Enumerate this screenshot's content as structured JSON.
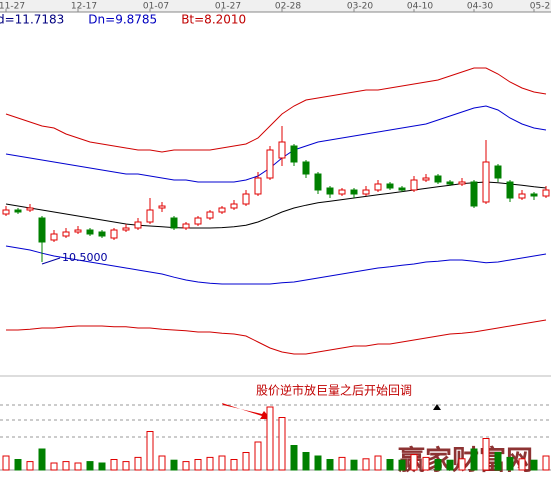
{
  "chart_data": {
    "type": "candlestick",
    "header_labels": [
      {
        "text": "d=11.7183",
        "color": "#000080"
      },
      {
        "text": "Dn=9.8785",
        "color": "#0000c0"
      },
      {
        "text": "Bt=8.2010",
        "color": "#c00000"
      }
    ],
    "categories": [
      "11-27",
      null,
      null,
      null,
      null,
      null,
      "12-17",
      null,
      null,
      null,
      null,
      null,
      "01-07",
      null,
      null,
      null,
      null,
      null,
      "01-27",
      null,
      null,
      null,
      null,
      "02-28",
      null,
      null,
      null,
      null,
      null,
      "03-20",
      null,
      null,
      null,
      null,
      "04-10",
      null,
      null,
      null,
      null,
      "04-30",
      null,
      null,
      null,
      null,
      "05-2",
      null
    ],
    "open": [
      11.7,
      11.8,
      11.8,
      11.6,
      11.05,
      11.15,
      11.25,
      11.3,
      11.25,
      11.1,
      11.3,
      11.35,
      11.5,
      11.85,
      11.6,
      11.35,
      11.45,
      11.6,
      11.75,
      11.85,
      11.95,
      12.2,
      12.6,
      13.1,
      13.4,
      13.0,
      12.7,
      12.35,
      12.2,
      12.3,
      12.2,
      12.3,
      12.45,
      12.35,
      12.3,
      12.55,
      12.65,
      12.5,
      12.45,
      12.5,
      12.0,
      12.9,
      12.5,
      12.1,
      12.2,
      12.15
    ],
    "high": [
      11.9,
      11.85,
      11.95,
      11.65,
      11.3,
      11.35,
      11.4,
      11.35,
      11.3,
      11.35,
      11.45,
      11.6,
      12.1,
      12.0,
      11.65,
      11.5,
      11.65,
      11.8,
      11.9,
      12.05,
      12.3,
      12.75,
      13.4,
      13.9,
      13.45,
      13.05,
      12.75,
      12.4,
      12.35,
      12.35,
      12.4,
      12.55,
      12.5,
      12.4,
      12.65,
      12.7,
      12.7,
      12.55,
      12.6,
      12.55,
      13.55,
      12.95,
      12.55,
      12.3,
      12.25,
      12.4
    ],
    "low": [
      11.65,
      11.7,
      11.75,
      10.5,
      11.0,
      11.1,
      11.2,
      11.15,
      11.1,
      11.05,
      11.25,
      11.3,
      11.45,
      11.75,
      11.3,
      11.3,
      11.4,
      11.55,
      11.7,
      11.8,
      11.9,
      12.15,
      12.55,
      12.9,
      12.9,
      12.6,
      12.2,
      12.1,
      12.15,
      12.1,
      12.15,
      12.25,
      12.3,
      12.25,
      12.25,
      12.5,
      12.45,
      12.4,
      12.4,
      11.85,
      11.95,
      12.5,
      12.0,
      12.05,
      12.05,
      12.1
    ],
    "close": [
      11.8,
      11.75,
      11.85,
      11.0,
      11.2,
      11.25,
      11.3,
      11.2,
      11.15,
      11.3,
      11.35,
      11.5,
      11.8,
      11.9,
      11.35,
      11.45,
      11.6,
      11.75,
      11.85,
      11.95,
      12.2,
      12.6,
      13.3,
      13.5,
      13.0,
      12.7,
      12.3,
      12.2,
      12.3,
      12.2,
      12.3,
      12.45,
      12.35,
      12.3,
      12.55,
      12.6,
      12.5,
      12.45,
      12.5,
      11.9,
      13.0,
      12.6,
      12.1,
      12.2,
      12.15,
      12.3
    ],
    "up_color": "#e00000",
    "down_color": "#008000",
    "ylim": [
      7.8,
      17.05
    ],
    "series": [
      {
        "color": "#d00000",
        "values": [
          14.2,
          14.1,
          14.0,
          13.9,
          13.85,
          13.7,
          13.6,
          13.5,
          13.45,
          13.4,
          13.35,
          13.3,
          13.3,
          13.25,
          13.3,
          13.3,
          13.3,
          13.3,
          13.35,
          13.4,
          13.45,
          13.6,
          13.9,
          14.2,
          14.4,
          14.55,
          14.6,
          14.65,
          14.7,
          14.75,
          14.8,
          14.8,
          14.85,
          14.9,
          14.95,
          15.0,
          15.05,
          15.15,
          15.25,
          15.35,
          15.35,
          15.2,
          15.0,
          14.85,
          14.75,
          14.7
        ]
      },
      {
        "color": "#0000d0",
        "values": [
          13.2,
          13.15,
          13.1,
          13.05,
          13.0,
          12.95,
          12.9,
          12.85,
          12.8,
          12.75,
          12.7,
          12.7,
          12.65,
          12.6,
          12.55,
          12.55,
          12.5,
          12.5,
          12.5,
          12.5,
          12.55,
          12.65,
          12.85,
          13.1,
          13.3,
          13.4,
          13.5,
          13.55,
          13.6,
          13.65,
          13.7,
          13.75,
          13.8,
          13.85,
          13.9,
          13.95,
          14.05,
          14.15,
          14.25,
          14.35,
          14.4,
          14.3,
          14.1,
          13.95,
          13.85,
          13.8
        ]
      },
      {
        "color": "#000000",
        "values": [
          11.95,
          11.9,
          11.85,
          11.8,
          11.75,
          11.7,
          11.65,
          11.6,
          11.55,
          11.5,
          11.45,
          11.42,
          11.4,
          11.38,
          11.36,
          11.35,
          11.35,
          11.35,
          11.36,
          11.38,
          11.42,
          11.5,
          11.62,
          11.75,
          11.85,
          11.92,
          11.98,
          12.02,
          12.06,
          12.1,
          12.14,
          12.18,
          12.22,
          12.26,
          12.3,
          12.34,
          12.38,
          12.42,
          12.46,
          12.48,
          12.5,
          12.48,
          12.45,
          12.42,
          12.38,
          12.35
        ]
      },
      {
        "color": "#0000d0",
        "values": [
          10.9,
          10.85,
          10.8,
          10.72,
          10.65,
          10.6,
          10.55,
          10.5,
          10.45,
          10.4,
          10.35,
          10.3,
          10.25,
          10.2,
          10.12,
          10.05,
          10.0,
          9.97,
          9.95,
          9.95,
          9.95,
          9.95,
          9.95,
          9.98,
          10.0,
          10.05,
          10.1,
          10.15,
          10.2,
          10.25,
          10.3,
          10.35,
          10.38,
          10.42,
          10.45,
          10.5,
          10.52,
          10.55,
          10.55,
          10.52,
          10.48,
          10.5,
          10.55,
          10.6,
          10.65,
          10.7
        ]
      },
      {
        "color": "#d00000",
        "values": [
          8.8,
          8.8,
          8.82,
          8.85,
          8.85,
          8.88,
          8.9,
          8.9,
          8.9,
          8.88,
          8.88,
          8.85,
          8.85,
          8.82,
          8.8,
          8.78,
          8.75,
          8.75,
          8.72,
          8.7,
          8.65,
          8.5,
          8.35,
          8.25,
          8.2,
          8.2,
          8.25,
          8.3,
          8.35,
          8.4,
          8.4,
          8.45,
          8.45,
          8.5,
          8.55,
          8.6,
          8.65,
          8.7,
          8.72,
          8.75,
          8.8,
          8.85,
          8.9,
          8.95,
          9.0,
          9.05
        ]
      }
    ],
    "volume": {
      "ylim": [
        0,
        100
      ],
      "values": [
        20,
        15,
        12,
        30,
        10,
        12,
        10,
        12,
        10,
        15,
        12,
        18,
        55,
        20,
        14,
        12,
        15,
        18,
        20,
        15,
        25,
        40,
        90,
        75,
        35,
        25,
        20,
        15,
        18,
        14,
        16,
        20,
        15,
        14,
        22,
        18,
        15,
        14,
        16,
        30,
        45,
        25,
        18,
        16,
        14,
        20
      ]
    },
    "low_label": "10.5000",
    "annotation": "股价逆市放巨量之后开始回调",
    "watermark": "赢家财富网"
  }
}
